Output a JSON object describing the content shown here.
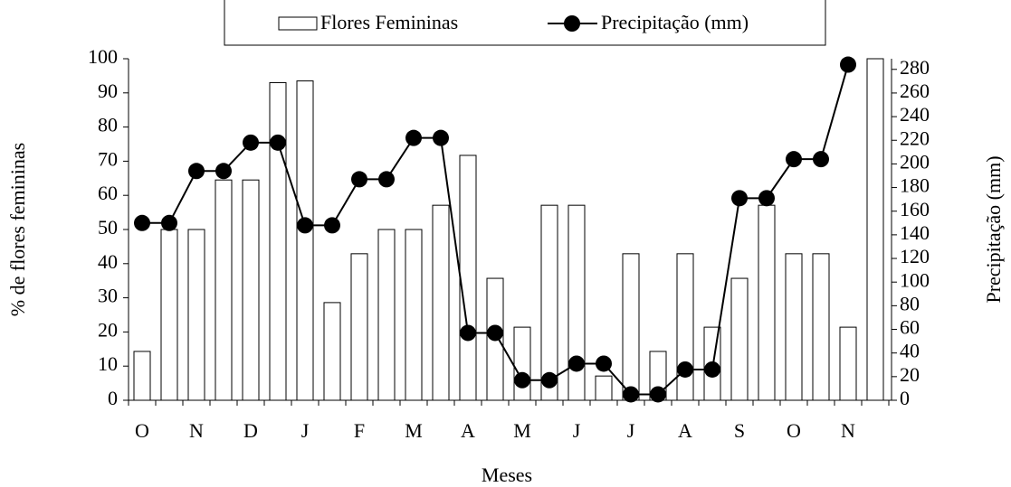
{
  "chart_data": {
    "type": "bar_line",
    "x_label": "Meses",
    "y_label": "% de flores  femininas",
    "y2_label": "Precipitação (mm)",
    "categories": [
      "O",
      null,
      "N",
      null,
      "D",
      null,
      "J",
      null,
      "F",
      null,
      "M",
      null,
      "A",
      null,
      "M",
      null,
      "J",
      null,
      "J",
      null,
      "A",
      null,
      "S",
      null,
      "O",
      null,
      "N",
      null
    ],
    "series": [
      {
        "name": "Flores Femininas",
        "kind": "bar",
        "color": "#ffffff",
        "values": [
          14.3,
          50,
          50,
          64.5,
          64.5,
          93,
          93.5,
          28.6,
          42.9,
          50,
          50,
          57.1,
          71.7,
          35.7,
          21.4,
          57.1,
          57.1,
          7.1,
          42.9,
          14.3,
          42.9,
          21.4,
          35.7,
          57.1,
          42.9,
          42.9,
          21.4,
          100
        ]
      },
      {
        "name": "Precipitação (mm)",
        "kind": "line",
        "axis": "y2",
        "color": "#000000",
        "values": [
          150,
          150,
          194,
          194,
          218,
          218,
          148,
          148,
          187,
          187,
          222,
          222,
          57,
          57,
          17,
          17,
          31,
          31,
          5,
          5,
          26,
          26,
          171,
          171,
          204,
          204,
          284,
          null
        ]
      }
    ],
    "ylim": [
      0,
      100
    ],
    "yticks": [
      0,
      10,
      20,
      30,
      40,
      50,
      60,
      70,
      80,
      90,
      100
    ],
    "y2lim": [
      0,
      289
    ],
    "y2ticks": [
      0,
      20,
      40,
      60,
      80,
      100,
      120,
      140,
      160,
      180,
      200,
      220,
      240,
      260,
      280
    ],
    "legend": "top"
  }
}
